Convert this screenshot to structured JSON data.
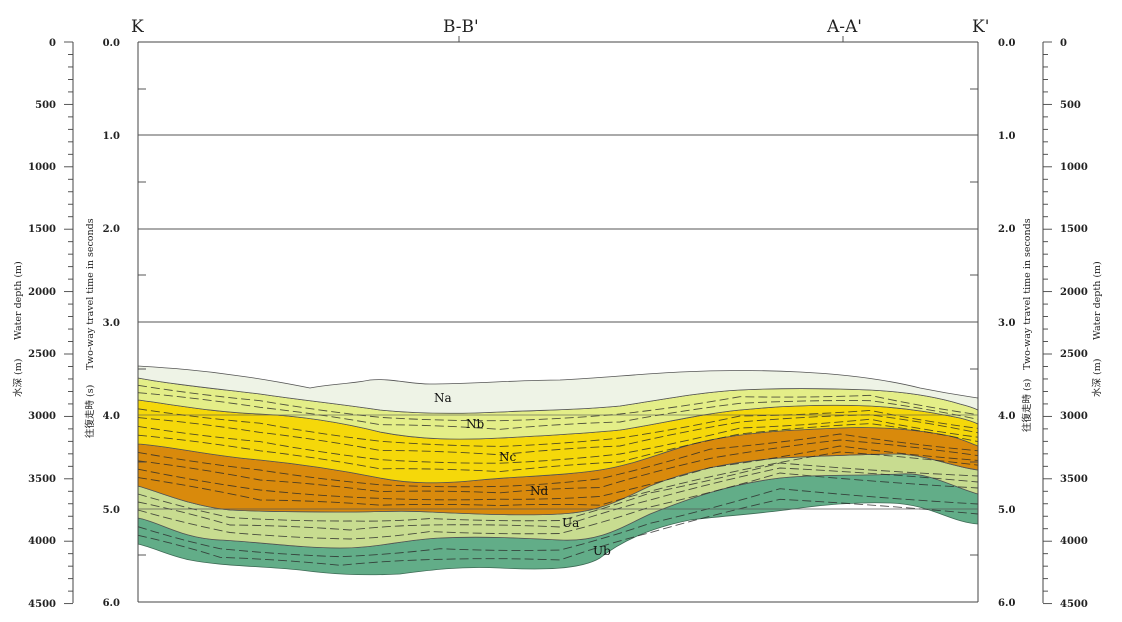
{
  "section_labels": {
    "k": "K",
    "bb": "B-B'",
    "aa": "A-A'",
    "k_prime": "K'"
  },
  "axes": {
    "twt_title": "Two-way travel time in seconds",
    "twt_title_jp": "往復走時 (s)",
    "depth_title": "Water depth (m)",
    "depth_title_jp": "水深 (m)",
    "twt_ticks": [
      "0.0",
      "1.0",
      "2.0",
      "3.0",
      "4.0",
      "5.0",
      "6.0"
    ],
    "depth_ticks": [
      "0",
      "500",
      "1000",
      "1500",
      "2000",
      "2500",
      "3000",
      "3500",
      "4000",
      "4500"
    ]
  },
  "units": {
    "na": "Na",
    "nb": "Nb",
    "nc": "Nc",
    "nd": "Nd",
    "ua": "Ua",
    "ub": "Ub"
  },
  "colors": {
    "na": "#eef3e6",
    "nb": "#e4ee88",
    "nc": "#f5d80a",
    "nd": "#d98a0c",
    "ua": "#c8dc90",
    "ub": "#62ad88",
    "gridline": "#555555"
  }
}
